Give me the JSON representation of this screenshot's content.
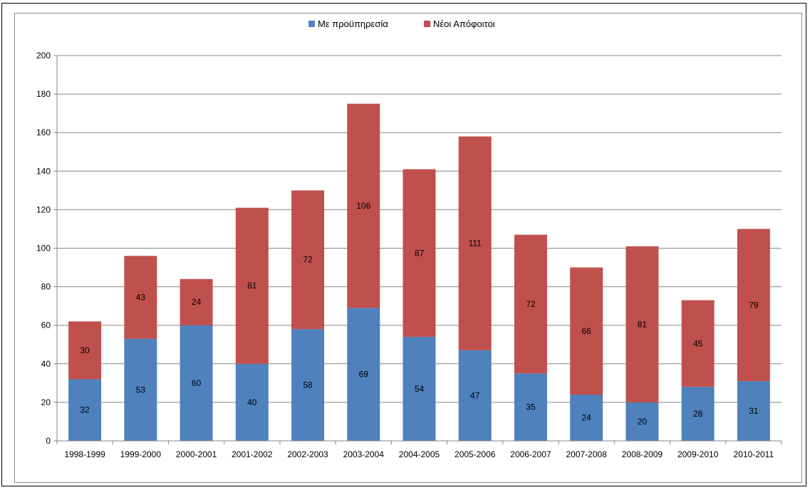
{
  "chart_data": {
    "type": "bar",
    "stacked": true,
    "categories": [
      "1998-1999",
      "1999-2000",
      "2000-2001",
      "2001-2002",
      "2002-2003",
      "2003-2004",
      "2004-2005",
      "2005-2006",
      "2006-2007",
      "2007-2008",
      "2008-2009",
      "2009-2010",
      "2010-2011"
    ],
    "series": [
      {
        "name": "Με προϋπηρεσία",
        "color": "#4f81bd",
        "values": [
          32,
          53,
          60,
          40,
          58,
          69,
          54,
          47,
          35,
          24,
          20,
          28,
          31
        ]
      },
      {
        "name": "Νέοι Απόφοιτοι",
        "color": "#c0504d",
        "values": [
          30,
          43,
          24,
          81,
          72,
          106,
          87,
          111,
          72,
          66,
          81,
          45,
          79
        ]
      }
    ],
    "title": "",
    "xlabel": "",
    "ylabel": "",
    "ylim": [
      0,
      200
    ],
    "yticks": [
      0,
      20,
      40,
      60,
      80,
      100,
      120,
      140,
      160,
      180,
      200
    ],
    "grid": true,
    "legend_position": "top-center",
    "data_labels": true
  }
}
